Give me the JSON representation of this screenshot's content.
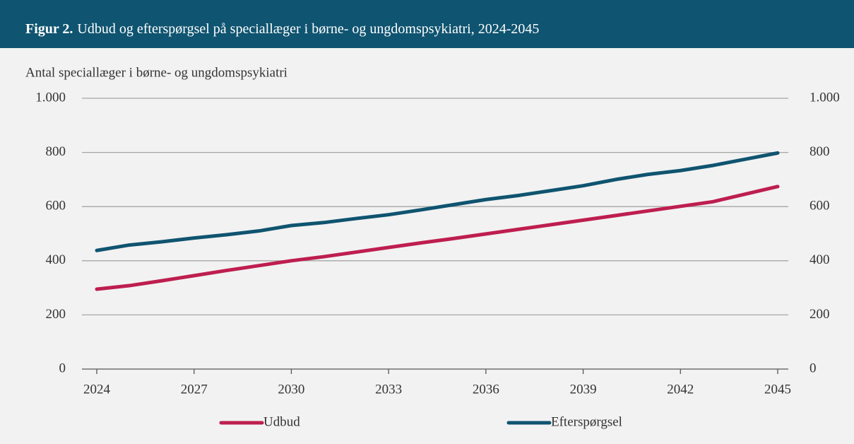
{
  "chart_data": {
    "type": "line",
    "title_label": "Figur 2.",
    "title": "Udbud og efterspørgsel på speciallæger i børne- og ungdomspsykiatri, 2024-2045",
    "y_label": "Antal speciallæger i børne- og ungdomspsykiatri",
    "x": [
      2024,
      2025,
      2026,
      2027,
      2028,
      2029,
      2030,
      2031,
      2032,
      2033,
      2034,
      2035,
      2036,
      2037,
      2038,
      2039,
      2040,
      2041,
      2042,
      2043,
      2044,
      2045
    ],
    "xlim": [
      2024,
      2045
    ],
    "xticks": [
      2024,
      2027,
      2030,
      2033,
      2036,
      2039,
      2042,
      2045
    ],
    "ylim": [
      0,
      1000
    ],
    "yticks": [
      0,
      200,
      400,
      600,
      800,
      {
        "value": 1000,
        "label": "1.000"
      }
    ],
    "y2lim": [
      0,
      1000
    ],
    "y2ticks": [
      0,
      200,
      400,
      600,
      800,
      {
        "value": 1000,
        "label": "1.000"
      }
    ],
    "grid": true,
    "legend": "bottom",
    "series": [
      {
        "name": "Udbud",
        "color": "#be1e4f",
        "values": [
          295,
          308,
          326,
          345,
          364,
          382,
          400,
          415,
          432,
          449,
          466,
          482,
          499,
          516,
          533,
          550,
          567,
          584,
          601,
          618,
          646,
          674
        ]
      },
      {
        "name": "Efterspørgsel",
        "color": "#0f5470",
        "values": [
          438,
          458,
          470,
          484,
          496,
          510,
          530,
          541,
          556,
          570,
          588,
          607,
          626,
          641,
          659,
          677,
          700,
          719,
          733,
          752,
          775,
          798
        ]
      }
    ]
  }
}
